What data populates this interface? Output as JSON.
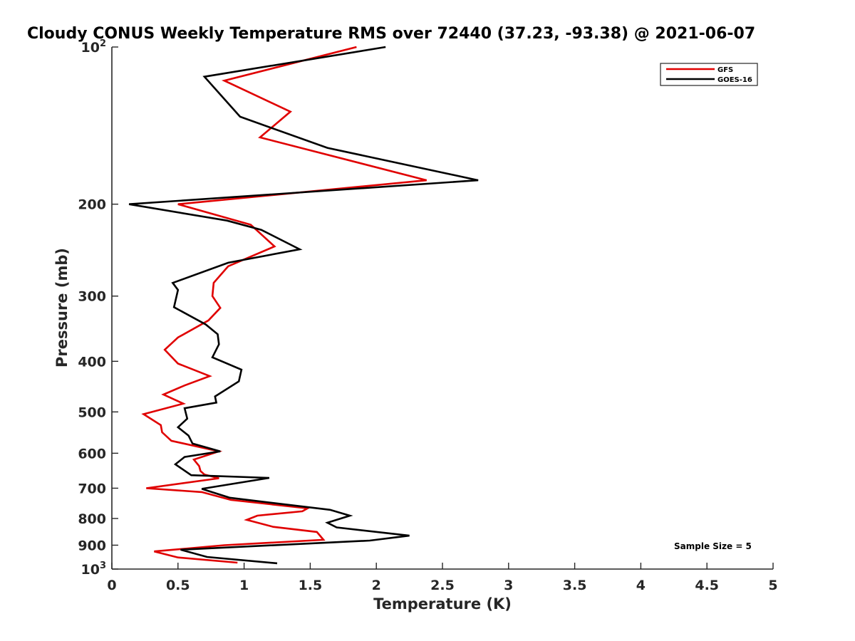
{
  "chart_data": {
    "type": "line",
    "title": "Cloudy CONUS Weekly Temperature RMS over 72440 (37.23, -93.38) @ 2021-06-07",
    "xlabel": "Temperature (K)",
    "ylabel": "Pressure (mb)",
    "xlim": [
      0,
      5
    ],
    "ylim": [
      100,
      1000
    ],
    "y_scale": "log",
    "y_reversed": true,
    "x_ticks": [
      0,
      0.5,
      1,
      1.5,
      2,
      2.5,
      3,
      3.5,
      4,
      4.5,
      5
    ],
    "x_tick_labels": [
      "0",
      "0.5",
      "1",
      "1.5",
      "2",
      "2.5",
      "3",
      "3.5",
      "4",
      "4.5",
      "5"
    ],
    "y_ticks": [
      100,
      200,
      300,
      400,
      500,
      600,
      700,
      800,
      900,
      1000
    ],
    "y_tick_labels": [
      {
        "base": "10",
        "sup": "2"
      },
      {
        "base": "200",
        "sup": ""
      },
      {
        "base": "300",
        "sup": ""
      },
      {
        "base": "400",
        "sup": ""
      },
      {
        "base": "500",
        "sup": ""
      },
      {
        "base": "600",
        "sup": ""
      },
      {
        "base": "700",
        "sup": ""
      },
      {
        "base": "800",
        "sup": ""
      },
      {
        "base": "900",
        "sup": ""
      },
      {
        "base": "10",
        "sup": "3"
      }
    ],
    "grid": false,
    "legend_position": "top-right",
    "annotation": "Sample Size = 5",
    "series": [
      {
        "name": "GFS",
        "color": "#e00000",
        "points": [
          [
            1.85,
            100
          ],
          [
            0.85,
            116
          ],
          [
            1.35,
            133
          ],
          [
            1.12,
            149
          ],
          [
            2.38,
            180
          ],
          [
            0.5,
            200
          ],
          [
            1.05,
            219
          ],
          [
            1.23,
            241
          ],
          [
            0.88,
            263
          ],
          [
            0.77,
            283
          ],
          [
            0.76,
            300
          ],
          [
            0.82,
            316
          ],
          [
            0.73,
            334
          ],
          [
            0.5,
            360
          ],
          [
            0.4,
            380
          ],
          [
            0.5,
            404
          ],
          [
            0.74,
            427
          ],
          [
            0.55,
            445
          ],
          [
            0.39,
            463
          ],
          [
            0.54,
            482
          ],
          [
            0.24,
            505
          ],
          [
            0.37,
            530
          ],
          [
            0.38,
            547
          ],
          [
            0.45,
            568
          ],
          [
            0.81,
            595
          ],
          [
            0.62,
            617
          ],
          [
            0.66,
            635
          ],
          [
            0.67,
            649
          ],
          [
            0.7,
            659
          ],
          [
            0.81,
            670
          ],
          [
            0.26,
            700
          ],
          [
            0.68,
            712
          ],
          [
            0.9,
            737
          ],
          [
            1.48,
            765
          ],
          [
            1.44,
            775
          ],
          [
            1.1,
            790
          ],
          [
            1.02,
            805
          ],
          [
            1.22,
            830
          ],
          [
            1.55,
            849
          ],
          [
            1.6,
            879
          ],
          [
            0.85,
            900
          ],
          [
            0.32,
            925
          ],
          [
            0.5,
            950
          ],
          [
            0.95,
            972
          ]
        ]
      },
      {
        "name": "GOES-16",
        "color": "#000000",
        "points": [
          [
            2.07,
            100
          ],
          [
            0.7,
            114
          ],
          [
            0.97,
            136
          ],
          [
            1.63,
            156
          ],
          [
            2.77,
            180
          ],
          [
            0.13,
            200
          ],
          [
            0.87,
            215
          ],
          [
            1.13,
            224
          ],
          [
            1.42,
            244
          ],
          [
            0.88,
            259
          ],
          [
            0.46,
            283
          ],
          [
            0.5,
            292
          ],
          [
            0.47,
            315
          ],
          [
            0.71,
            340
          ],
          [
            0.8,
            355
          ],
          [
            0.81,
            371
          ],
          [
            0.76,
            393
          ],
          [
            0.98,
            415
          ],
          [
            0.96,
            437
          ],
          [
            0.78,
            467
          ],
          [
            0.79,
            480
          ],
          [
            0.55,
            492
          ],
          [
            0.57,
            515
          ],
          [
            0.5,
            535
          ],
          [
            0.58,
            555
          ],
          [
            0.61,
            575
          ],
          [
            0.82,
            595
          ],
          [
            0.55,
            610
          ],
          [
            0.48,
            630
          ],
          [
            0.6,
            661
          ],
          [
            1.19,
            669
          ],
          [
            0.68,
            702
          ],
          [
            0.89,
            730
          ],
          [
            1.65,
            770
          ],
          [
            1.8,
            790
          ],
          [
            1.63,
            815
          ],
          [
            1.7,
            832
          ],
          [
            2.25,
            863
          ],
          [
            1.95,
            882
          ],
          [
            0.52,
            918
          ],
          [
            0.72,
            948
          ],
          [
            1.25,
            975
          ]
        ]
      }
    ]
  }
}
